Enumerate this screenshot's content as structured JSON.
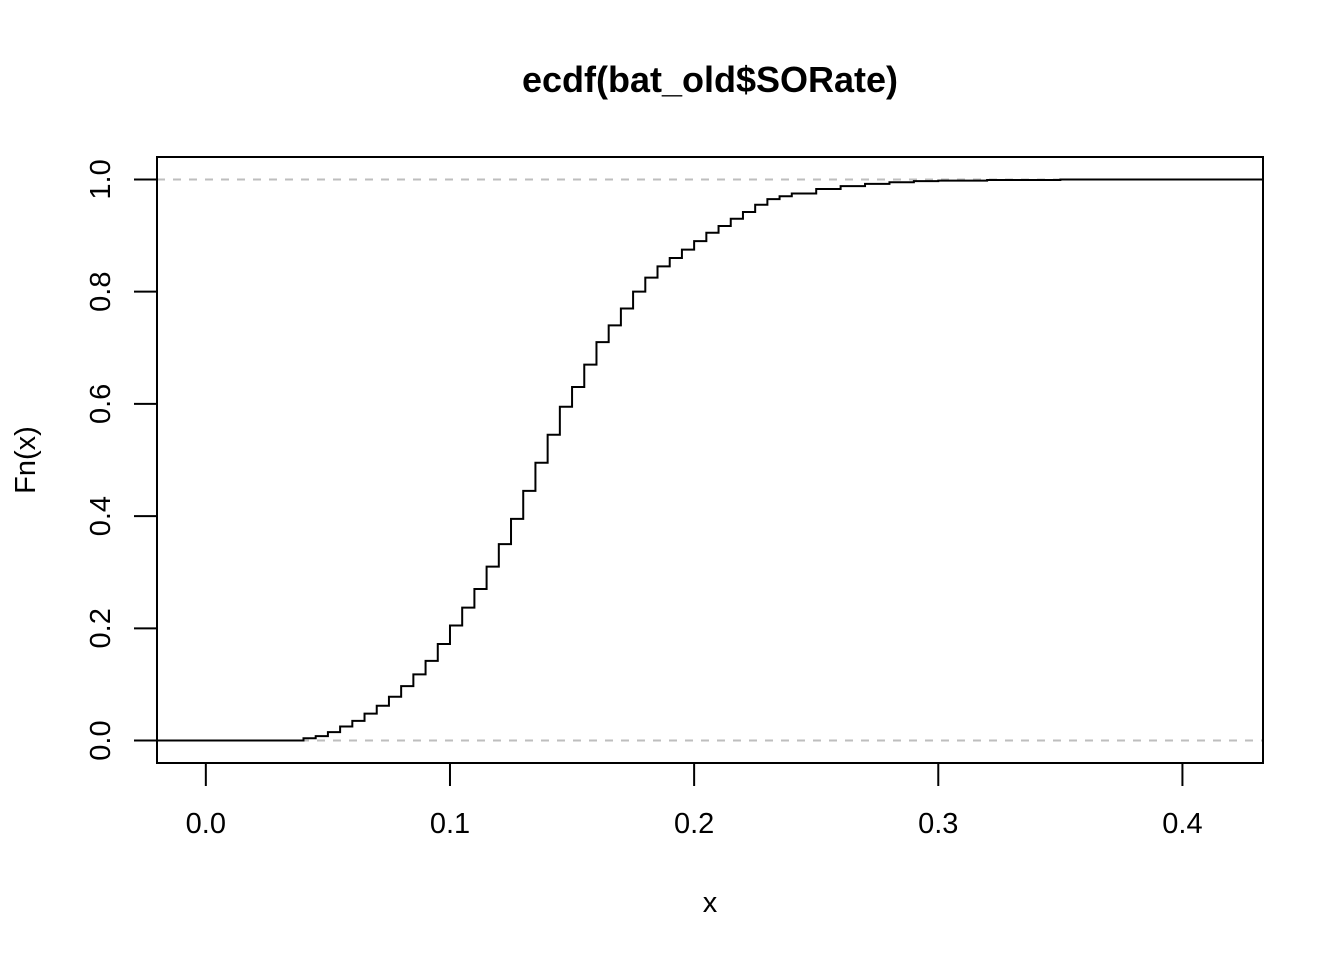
{
  "chart_data": {
    "type": "line",
    "title": "ecdf(bat_old$SORate)",
    "xlabel": "x",
    "ylabel": "Fn(x)",
    "xlim": [
      -0.02,
      0.433
    ],
    "ylim": [
      -0.04,
      1.04
    ],
    "x_ticks": [
      0.0,
      0.1,
      0.2,
      0.3,
      0.4
    ],
    "x_tick_labels": [
      "0.0",
      "0.1",
      "0.2",
      "0.3",
      "0.4"
    ],
    "y_ticks": [
      0.0,
      0.2,
      0.4,
      0.6,
      0.8,
      1.0
    ],
    "y_tick_labels": [
      "0.0",
      "0.2",
      "0.4",
      "0.6",
      "0.8",
      "1.0"
    ],
    "reference_lines": [
      0,
      1
    ],
    "grid": false,
    "series": [
      {
        "x": [
          -0.02,
          0.0,
          0.02,
          0.03,
          0.04,
          0.045,
          0.05,
          0.055,
          0.06,
          0.065,
          0.07,
          0.075,
          0.08,
          0.085,
          0.09,
          0.095,
          0.1,
          0.105,
          0.11,
          0.115,
          0.12,
          0.125,
          0.13,
          0.135,
          0.14,
          0.145,
          0.15,
          0.155,
          0.16,
          0.165,
          0.17,
          0.175,
          0.18,
          0.185,
          0.19,
          0.195,
          0.2,
          0.205,
          0.21,
          0.215,
          0.22,
          0.225,
          0.23,
          0.235,
          0.24,
          0.25,
          0.26,
          0.27,
          0.28,
          0.29,
          0.3,
          0.32,
          0.35,
          0.4,
          0.433
        ],
        "y": [
          0.0,
          0.0,
          0.0,
          0.0,
          0.004,
          0.008,
          0.015,
          0.025,
          0.035,
          0.048,
          0.062,
          0.078,
          0.097,
          0.118,
          0.142,
          0.172,
          0.205,
          0.237,
          0.27,
          0.31,
          0.35,
          0.395,
          0.445,
          0.495,
          0.545,
          0.595,
          0.63,
          0.67,
          0.71,
          0.74,
          0.77,
          0.8,
          0.825,
          0.845,
          0.86,
          0.875,
          0.89,
          0.905,
          0.917,
          0.93,
          0.942,
          0.955,
          0.965,
          0.97,
          0.975,
          0.983,
          0.988,
          0.992,
          0.995,
          0.997,
          0.998,
          0.999,
          1.0,
          1.0,
          1.0
        ]
      }
    ]
  }
}
